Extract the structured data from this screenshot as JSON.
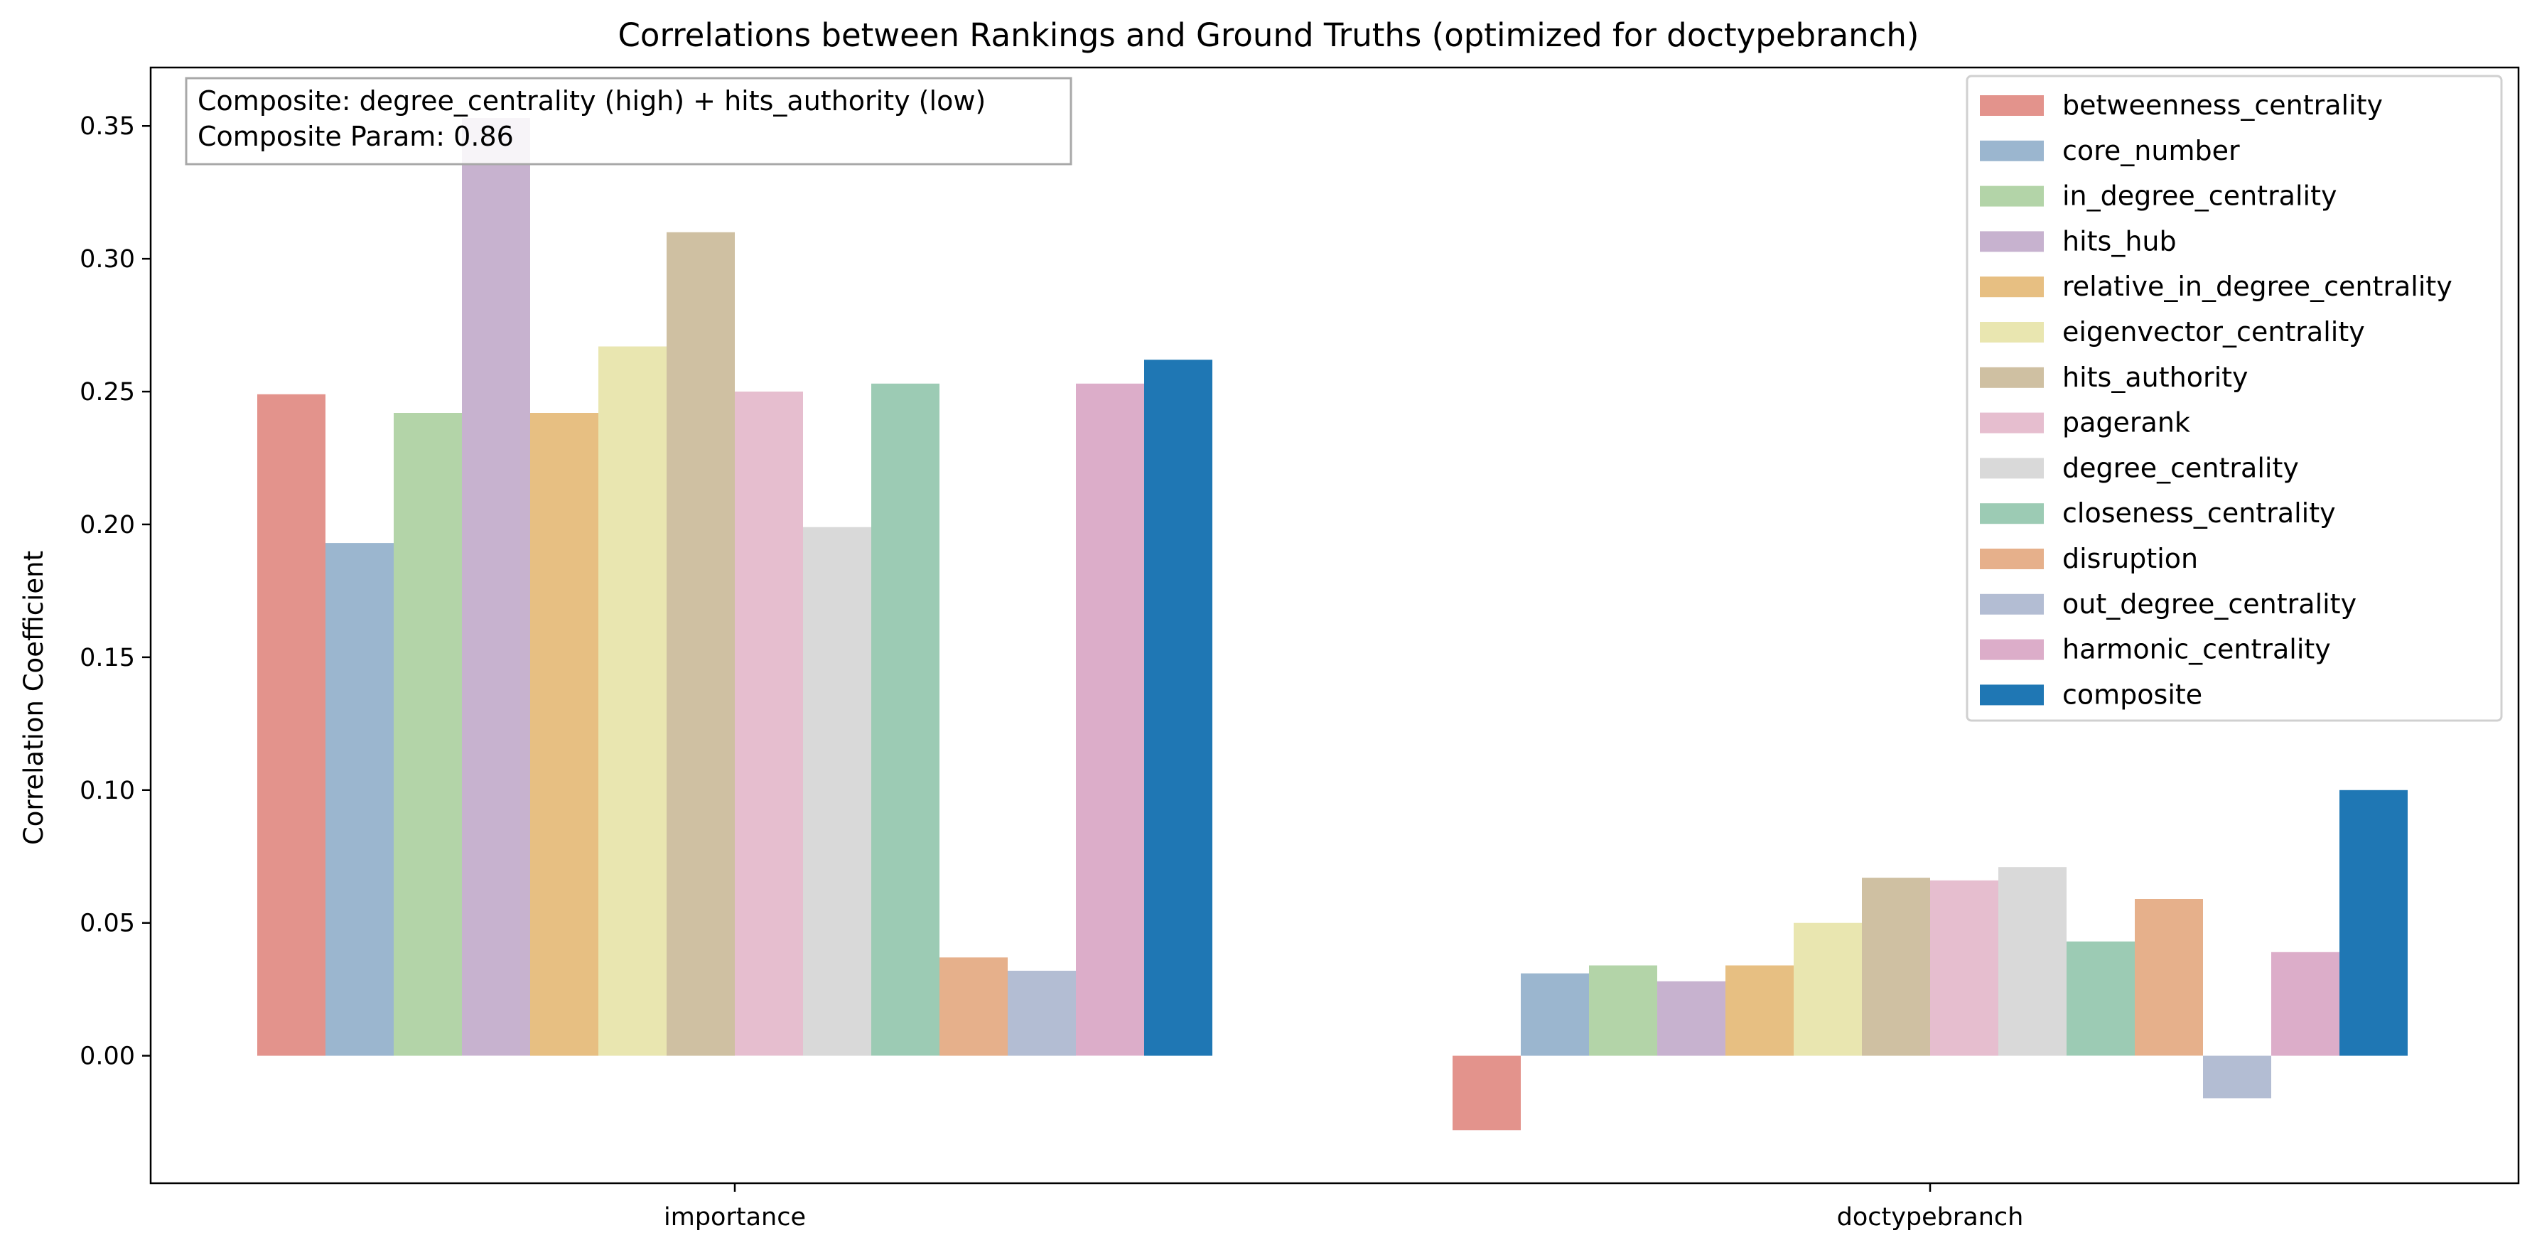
{
  "chart_data": {
    "type": "bar",
    "title": "Correlations between Rankings and Ground Truths (optimized for doctypebranch)",
    "xlabel": "",
    "ylabel": "Correlation Coefficient",
    "ylim": [
      -0.048,
      0.372
    ],
    "yticks": [
      "0.00",
      "0.05",
      "0.10",
      "0.15",
      "0.20",
      "0.25",
      "0.30",
      "0.35"
    ],
    "categories": [
      "importance",
      "doctypebranch"
    ],
    "grid": false,
    "legend_position": "top-right",
    "annotation": {
      "line1": "Composite: degree_centrality (high) + hits_authority (low)",
      "line2": "Composite Param: 0.86"
    },
    "series": [
      {
        "name": "betweenness_centrality",
        "color": "#e3938c",
        "values": [
          0.249,
          -0.028
        ]
      },
      {
        "name": "core_number",
        "color": "#9bb6cf",
        "values": [
          0.193,
          0.031
        ]
      },
      {
        "name": "in_degree_centrality",
        "color": "#b3d4a8",
        "values": [
          0.242,
          0.034
        ]
      },
      {
        "name": "hits_hub",
        "color": "#c7b2cf",
        "values": [
          0.353,
          0.028
        ]
      },
      {
        "name": "relative_in_degree_centrality",
        "color": "#e7bf82",
        "values": [
          0.242,
          0.034
        ]
      },
      {
        "name": "eigenvector_centrality",
        "color": "#e9e6b0",
        "values": [
          0.267,
          0.05
        ]
      },
      {
        "name": "hits_authority",
        "color": "#cfc0a2",
        "values": [
          0.31,
          0.067
        ]
      },
      {
        "name": "pagerank",
        "color": "#e6becf",
        "values": [
          0.25,
          0.066
        ]
      },
      {
        "name": "degree_centrality",
        "color": "#d9d9d9",
        "values": [
          0.199,
          0.071
        ]
      },
      {
        "name": "closeness_centrality",
        "color": "#9ccbb4",
        "values": [
          0.253,
          0.043
        ]
      },
      {
        "name": "disruption",
        "color": "#e6b08b",
        "values": [
          0.037,
          0.059
        ]
      },
      {
        "name": "out_degree_centrality",
        "color": "#b3bdd3",
        "values": [
          0.032,
          -0.016
        ]
      },
      {
        "name": "harmonic_centrality",
        "color": "#dcadc9",
        "values": [
          0.253,
          0.039
        ]
      },
      {
        "name": "composite",
        "color": "#1f77b4",
        "values": [
          0.262,
          0.1
        ]
      }
    ]
  }
}
